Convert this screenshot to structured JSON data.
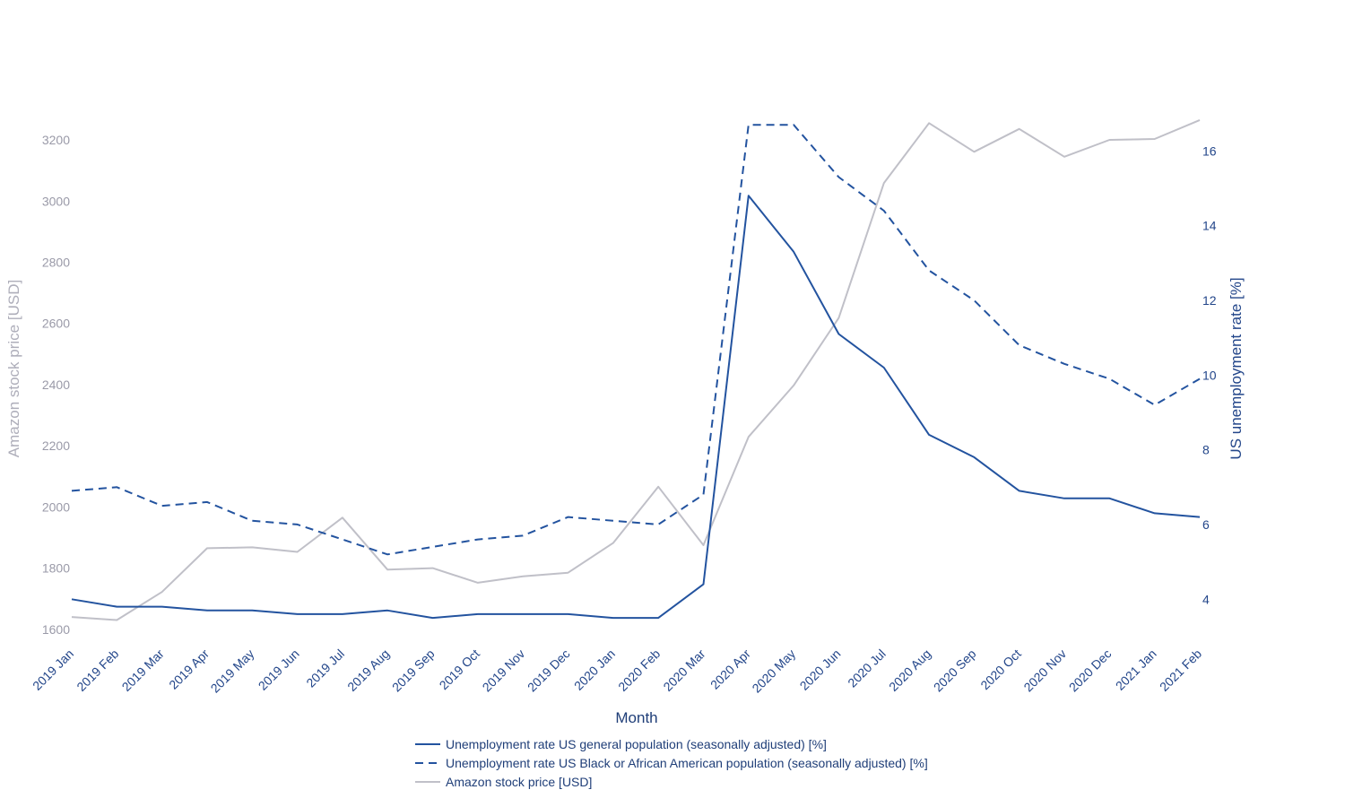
{
  "chart_data": {
    "type": "line",
    "xlabel": "Month",
    "categories": [
      "2019 Jan",
      "2019 Feb",
      "2019 Mar",
      "2019 Apr",
      "2019 May",
      "2019 Jun",
      "2019 Jul",
      "2019 Aug",
      "2019 Sep",
      "2019 Oct",
      "2019 Nov",
      "2019 Dec",
      "2020 Jan",
      "2020 Feb",
      "2020 Mar",
      "2020 Apr",
      "2020 May",
      "2020 Jun",
      "2020 Jul",
      "2020 Aug",
      "2020 Sep",
      "2020 Oct",
      "2020 Nov",
      "2020 Dec",
      "2021 Jan",
      "2021 Feb"
    ],
    "y_left": {
      "label": "Amazon stock price [USD]",
      "ticks": [
        1600,
        1800,
        2000,
        2200,
        2400,
        2600,
        2800,
        3000,
        3200
      ],
      "range": [
        1570,
        3335
      ],
      "color": "#aeaeba"
    },
    "y_right": {
      "label": "US unemployment rate [%]",
      "ticks": [
        4,
        6,
        8,
        10,
        12,
        14,
        16
      ],
      "range": [
        2.95,
        17.4
      ],
      "color": "#23468a"
    },
    "series": [
      {
        "name": "Unemployment rate US general population (seasonally adjusted) [%]",
        "axis": "right",
        "style": "solid",
        "color": "#23539f",
        "values": [
          4.0,
          3.8,
          3.8,
          3.7,
          3.7,
          3.6,
          3.6,
          3.7,
          3.5,
          3.6,
          3.6,
          3.6,
          3.5,
          3.5,
          4.4,
          14.8,
          13.3,
          11.1,
          10.2,
          8.4,
          7.8,
          6.9,
          6.7,
          6.7,
          6.3,
          6.2
        ]
      },
      {
        "name": "Unemployment rate US Black or African American population (seasonally adjusted) [%]",
        "axis": "right",
        "style": "dashed",
        "color": "#23539f",
        "values": [
          6.9,
          7.0,
          6.5,
          6.6,
          6.1,
          6.0,
          5.6,
          5.2,
          5.4,
          5.6,
          5.7,
          6.2,
          6.1,
          6.0,
          6.8,
          16.7,
          16.7,
          15.3,
          14.4,
          12.8,
          12.0,
          10.8,
          10.3,
          9.9,
          9.2,
          9.9
        ]
      },
      {
        "name": "Amazon stock price [USD]",
        "axis": "left",
        "style": "solid",
        "color": "#c0c0c8",
        "values": [
          1640,
          1630,
          1722,
          1865,
          1868,
          1853,
          1965,
          1795,
          1800,
          1752,
          1773,
          1785,
          1882,
          2066,
          1875,
          2229,
          2397,
          2618,
          3059,
          3255,
          3161,
          3236,
          3145,
          3200,
          3203,
          3265
        ]
      }
    ],
    "legend_position": "bottom-center",
    "grid": false
  }
}
